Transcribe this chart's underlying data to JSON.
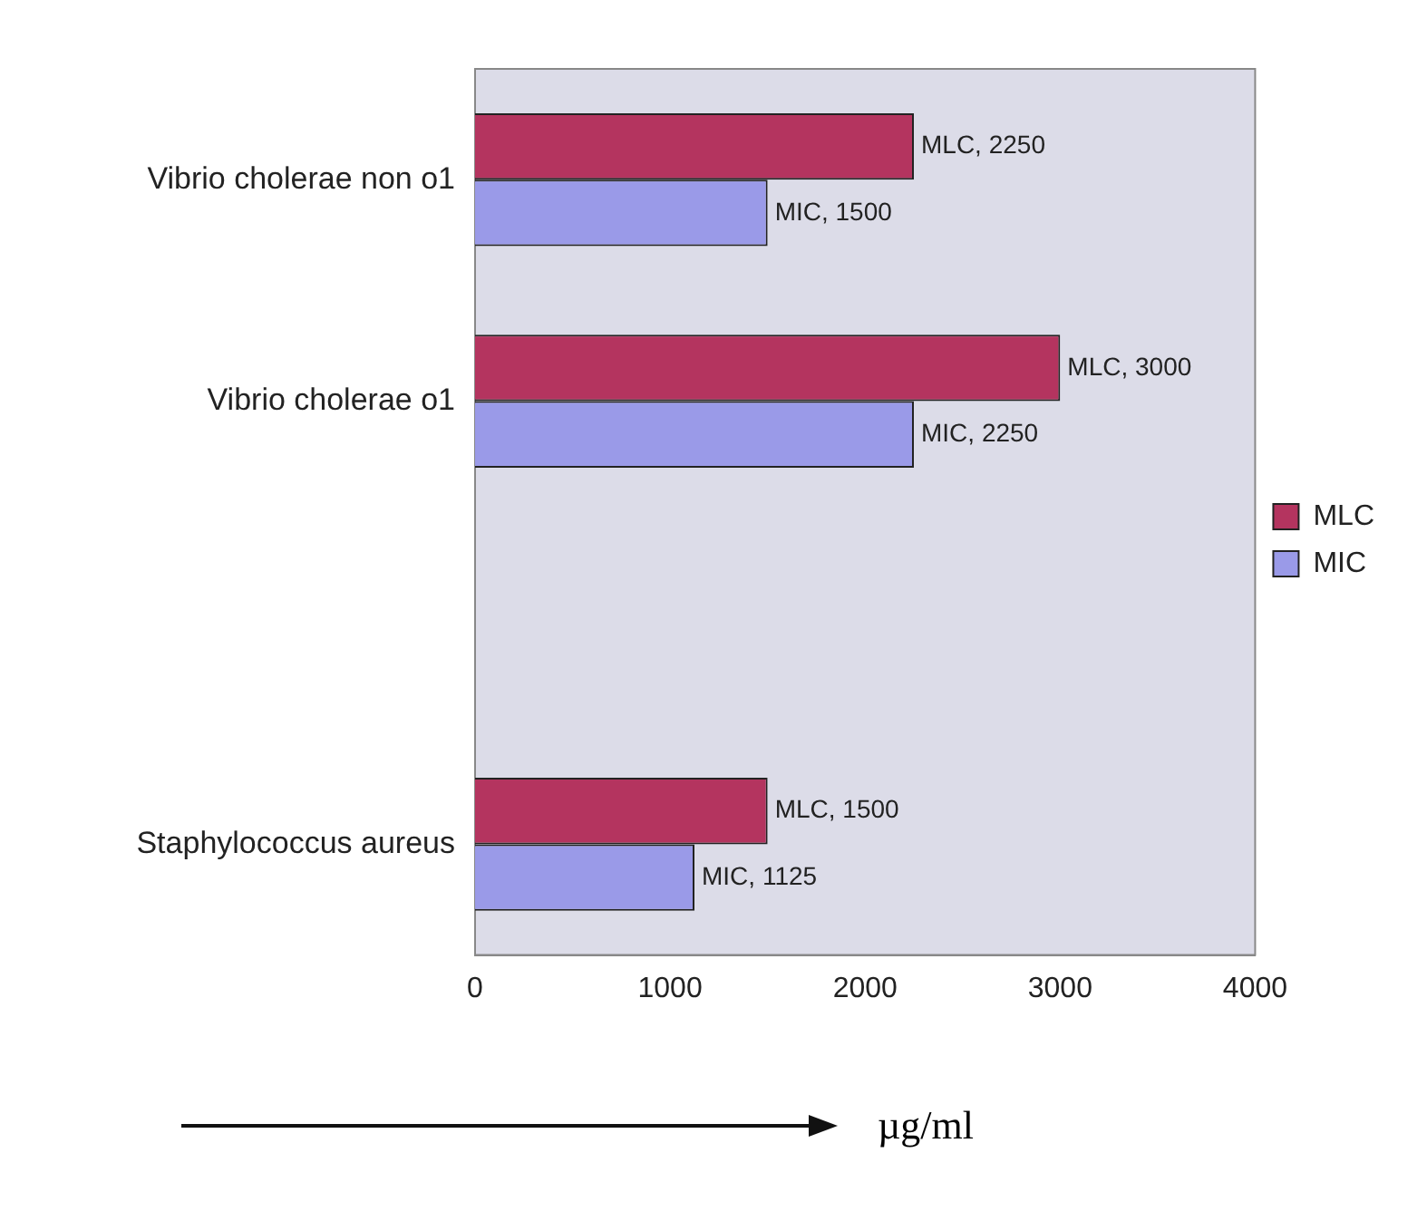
{
  "chart_data": {
    "type": "bar",
    "orientation": "horizontal",
    "xlabel": "µg/ml",
    "categories": [
      "Vibrio cholerae non o1",
      "Vibrio cholerae o1",
      null,
      "Staphylococcus aureus"
    ],
    "series": [
      {
        "name": "MLC",
        "color": "#b4345f",
        "values": [
          2250,
          3000,
          null,
          1500
        ],
        "value_labels": [
          "MLC, 2250",
          "MLC, 3000",
          null,
          "MLC, 1500"
        ]
      },
      {
        "name": "MIC",
        "color": "#9a9ae8",
        "values": [
          1500,
          2250,
          null,
          1125
        ],
        "value_labels": [
          "MIC, 1500",
          "MIC, 2250",
          null,
          "MIC, 1125"
        ]
      }
    ],
    "xlim": [
      0,
      4000
    ],
    "xticks": [
      0,
      1000,
      2000,
      3000,
      4000
    ],
    "grid": false,
    "legend": "right"
  }
}
